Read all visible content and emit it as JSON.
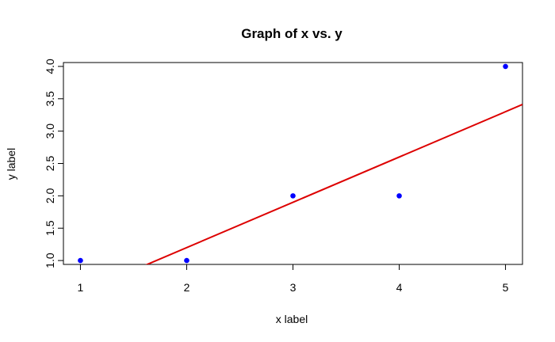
{
  "chart_data": {
    "type": "scatter",
    "title": "Graph of x vs. y",
    "xlabel": "x label",
    "ylabel": "y label",
    "xlim": [
      0.84,
      5.16
    ],
    "ylim": [
      0.94,
      4.06
    ],
    "xticks": [
      1,
      2,
      3,
      4,
      5
    ],
    "xtick_labels": [
      "1",
      "2",
      "3",
      "4",
      "5"
    ],
    "yticks": [
      1.0,
      1.5,
      2.0,
      2.5,
      3.0,
      3.5,
      4.0
    ],
    "ytick_labels": [
      "1.0",
      "1.5",
      "2.0",
      "2.5",
      "3.0",
      "3.5",
      "4.0"
    ],
    "grid": false,
    "series": [
      {
        "x": [
          1,
          2,
          3,
          4,
          5
        ],
        "y": [
          1,
          1,
          2,
          2,
          4
        ]
      }
    ],
    "regression_line": {
      "intercept": -0.2,
      "slope": 0.7
    },
    "colors": {
      "points": "#0000ff",
      "line": "#dd0000",
      "frame": "#000000"
    }
  }
}
